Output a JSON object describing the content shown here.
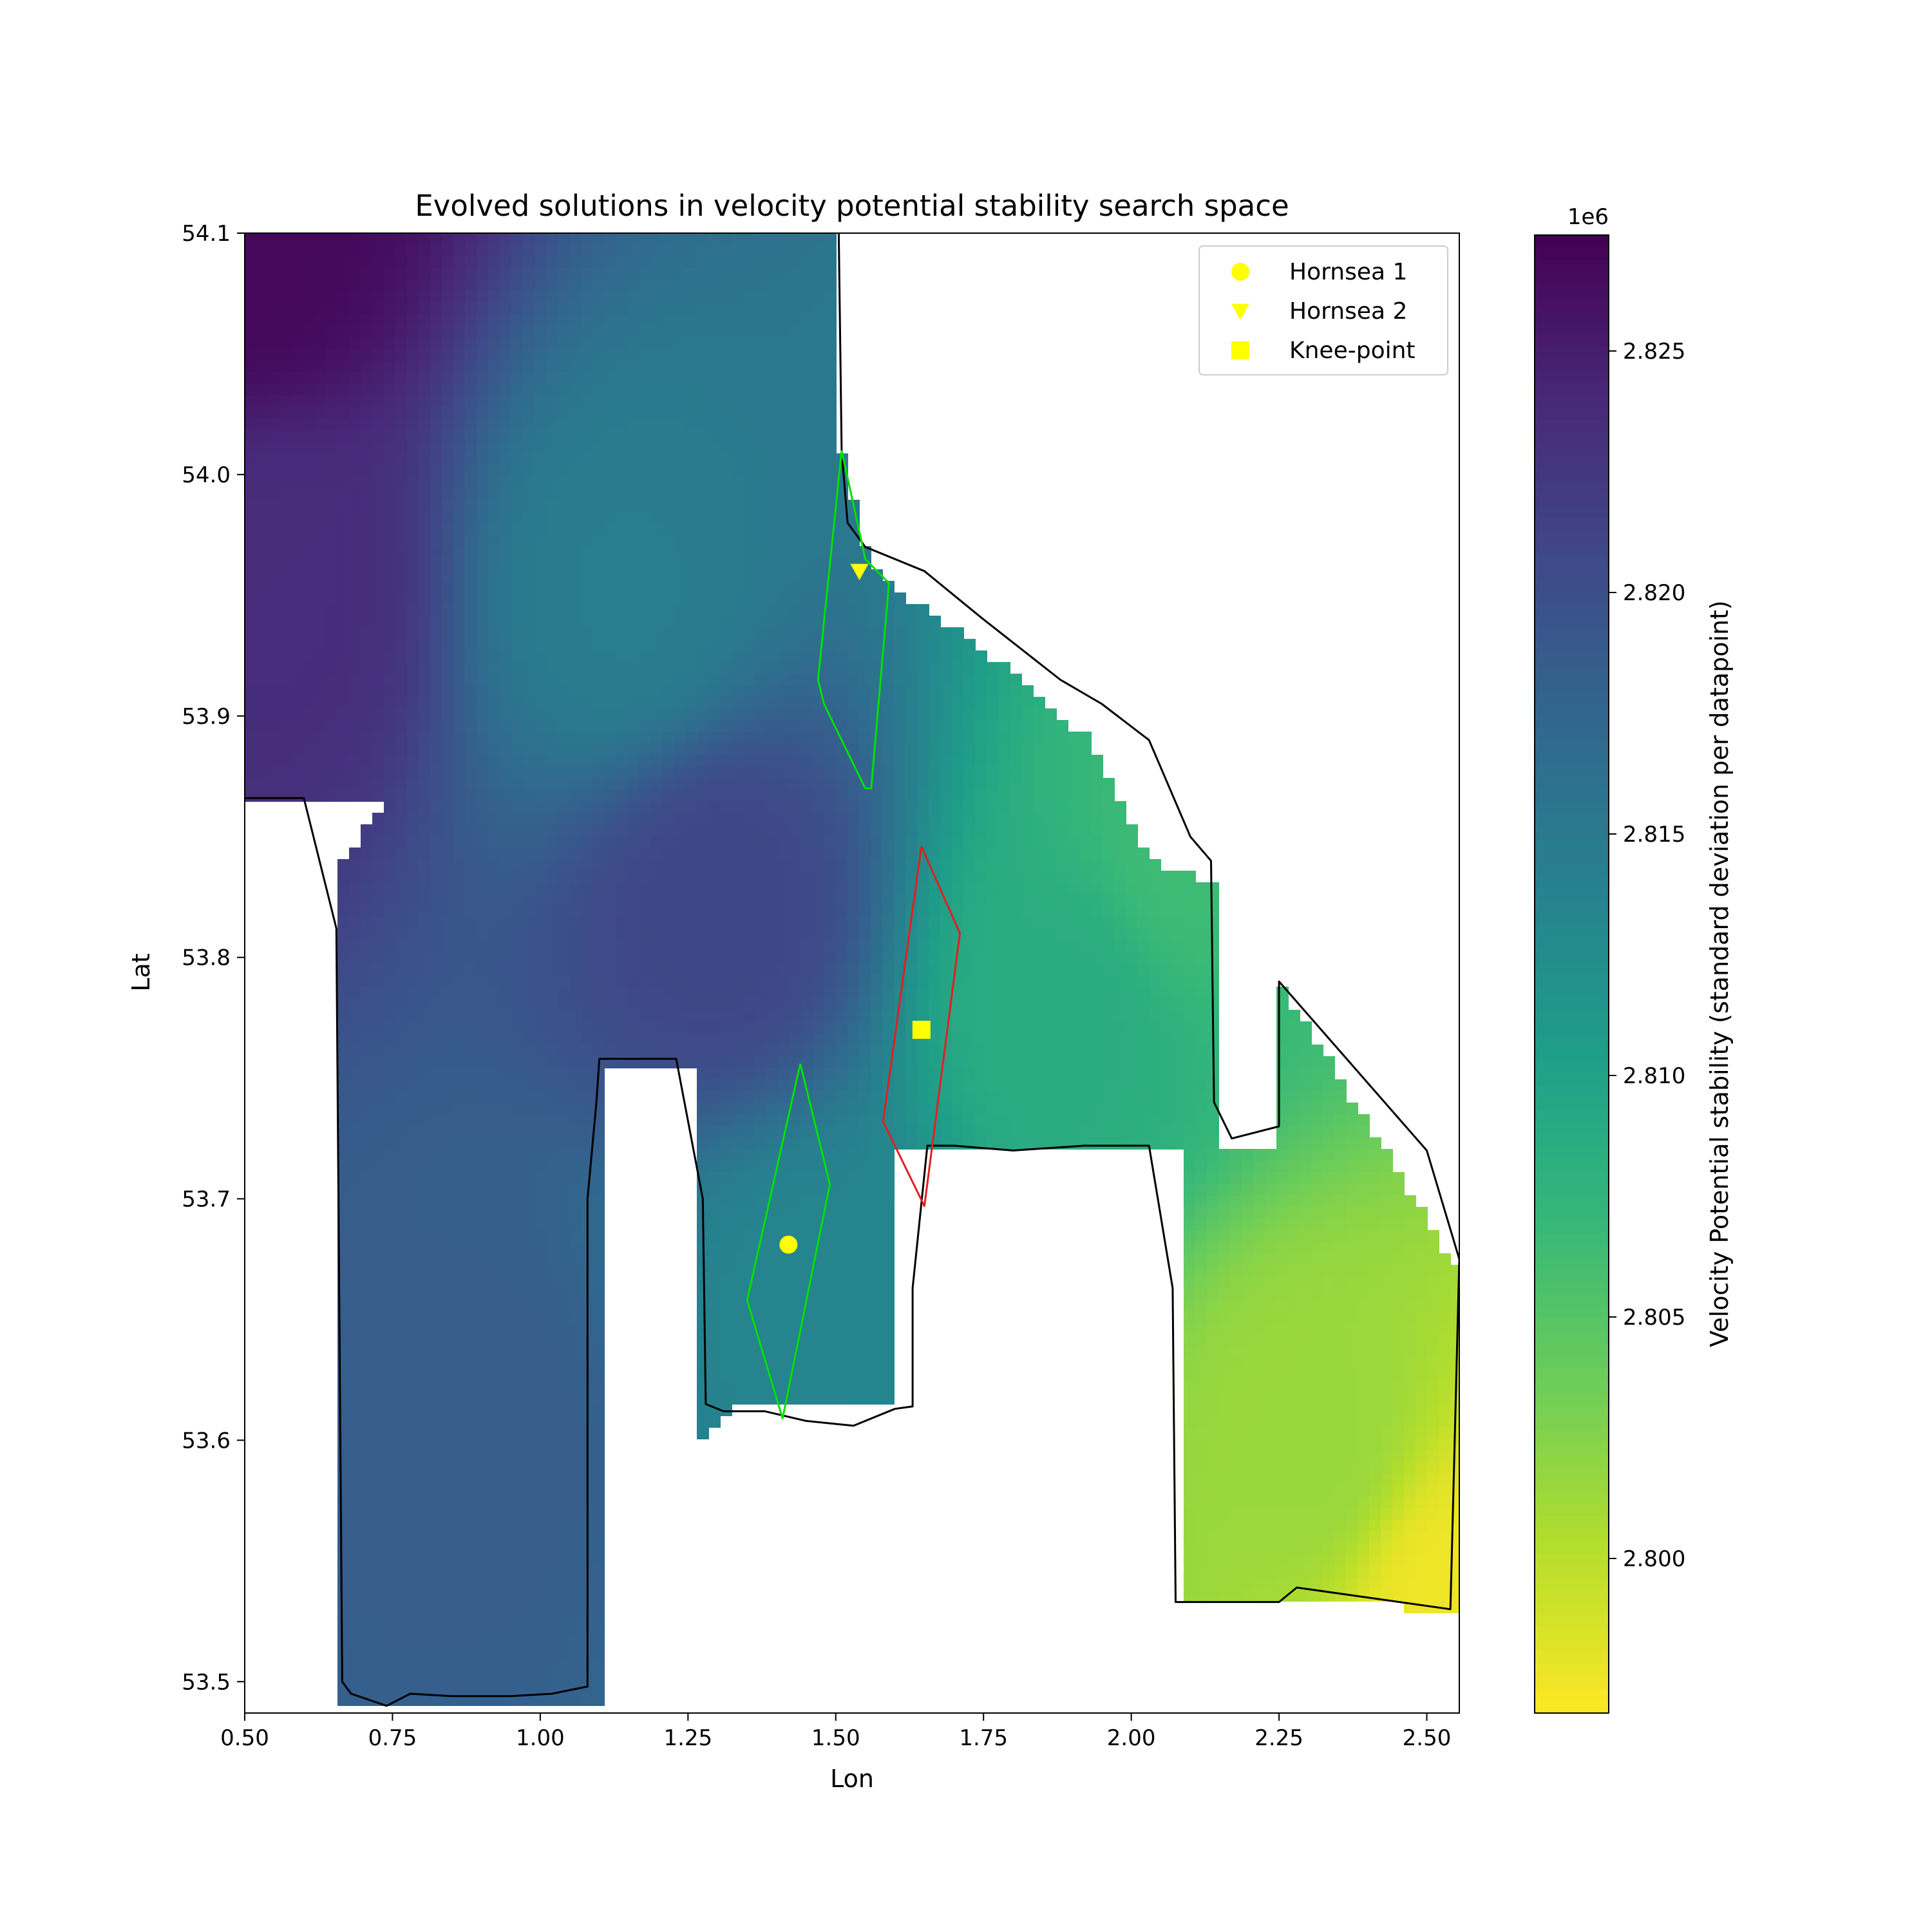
{
  "chart_data": {
    "type": "scatter",
    "title": "Evolved solutions in velocity potential stability search space",
    "xlabel": "Lon",
    "ylabel": "Lat",
    "xlim": [
      0.5,
      2.555
    ],
    "ylim": [
      53.487,
      54.1
    ],
    "x_ticks": [
      0.5,
      0.75,
      1.0,
      1.25,
      1.5,
      1.75,
      2.0,
      2.25,
      2.5
    ],
    "x_tick_labels": [
      "0.50",
      "0.75",
      "1.00",
      "1.25",
      "1.50",
      "1.75",
      "2.00",
      "2.25",
      "2.50"
    ],
    "y_ticks": [
      53.5,
      53.6,
      53.7,
      53.8,
      53.9,
      54.0,
      54.1
    ],
    "y_tick_labels": [
      "53.5",
      "53.6",
      "53.7",
      "53.8",
      "53.9",
      "54.0",
      "54.1"
    ],
    "grid": false,
    "legend_position": "top-right",
    "colormap": "viridis_r",
    "colorbar": {
      "label": "Velocity Potential stability (standard deviation per datapoint)",
      "multiplier": "1e6",
      "range": [
        2.7968,
        2.8274
      ],
      "ticks": [
        2.8,
        2.805,
        2.81,
        2.815,
        2.82,
        2.825
      ],
      "tick_labels": [
        "2.800",
        "2.805",
        "2.810",
        "2.815",
        "2.820",
        "2.825"
      ]
    },
    "search_space_regions": [
      {
        "polygon": [
          [
            0.5,
            54.1
          ],
          [
            1.51,
            54.1
          ],
          [
            1.51,
            54.01
          ],
          [
            1.56,
            53.96
          ],
          [
            1.79,
            53.92
          ],
          [
            1.93,
            53.89
          ],
          [
            2.03,
            53.84
          ],
          [
            2.15,
            53.83
          ],
          [
            2.15,
            53.72
          ],
          [
            2.25,
            53.72
          ],
          [
            2.25,
            53.79
          ],
          [
            2.555,
            53.67
          ],
          [
            2.555,
            53.53
          ],
          [
            2.08,
            53.535
          ],
          [
            2.08,
            53.72
          ],
          [
            1.6,
            53.72
          ],
          [
            1.6,
            53.615
          ],
          [
            1.34,
            53.615
          ],
          [
            1.27,
            53.6
          ],
          [
            1.27,
            53.755
          ],
          [
            1.1,
            53.755
          ],
          [
            1.1,
            53.49
          ],
          [
            0.66,
            53.49
          ],
          [
            0.66,
            53.84
          ],
          [
            0.73,
            53.86
          ],
          [
            0.73,
            53.865
          ],
          [
            0.5,
            53.865
          ]
        ]
      }
    ],
    "color_stops": [
      {
        "lon": 0.5,
        "lat": 54.1,
        "value": 2.8268
      },
      {
        "lon": 0.55,
        "lat": 53.95,
        "value": 2.8235
      },
      {
        "lon": 1.15,
        "lat": 53.95,
        "value": 2.8145
      },
      {
        "lon": 1.3,
        "lat": 53.82,
        "value": 2.821
      },
      {
        "lon": 0.9,
        "lat": 53.6,
        "value": 2.8185
      },
      {
        "lon": 1.45,
        "lat": 53.65,
        "value": 2.8135
      },
      {
        "lon": 1.9,
        "lat": 53.78,
        "value": 2.8085
      },
      {
        "lon": 2.1,
        "lat": 53.84,
        "value": 2.8065
      },
      {
        "lon": 2.3,
        "lat": 53.6,
        "value": 2.8015
      },
      {
        "lon": 2.55,
        "lat": 53.53,
        "value": 2.7975
      }
    ],
    "boundary_black": [
      [
        0.5,
        53.866
      ],
      [
        0.6,
        53.866
      ],
      [
        0.655,
        53.812
      ],
      [
        0.665,
        53.5
      ],
      [
        0.68,
        53.495
      ],
      [
        0.74,
        53.49
      ],
      [
        0.78,
        53.495
      ],
      [
        0.85,
        53.494
      ],
      [
        0.95,
        53.494
      ],
      [
        1.02,
        53.495
      ],
      [
        1.08,
        53.498
      ],
      [
        1.08,
        53.7
      ],
      [
        1.095,
        53.74
      ],
      [
        1.1,
        53.758
      ],
      [
        1.23,
        53.758
      ],
      [
        1.275,
        53.7
      ],
      [
        1.28,
        53.615
      ],
      [
        1.31,
        53.612
      ],
      [
        1.38,
        53.612
      ],
      [
        1.45,
        53.608
      ],
      [
        1.53,
        53.606
      ],
      [
        1.6,
        53.613
      ],
      [
        1.63,
        53.614
      ],
      [
        1.63,
        53.663
      ],
      [
        1.655,
        53.722
      ],
      [
        1.7,
        53.722
      ],
      [
        1.8,
        53.72
      ],
      [
        1.92,
        53.722
      ],
      [
        2.03,
        53.722
      ],
      [
        2.07,
        53.663
      ],
      [
        2.075,
        53.533
      ],
      [
        2.15,
        53.533
      ],
      [
        2.25,
        53.533
      ],
      [
        2.28,
        53.539
      ],
      [
        2.54,
        53.53
      ],
      [
        2.555,
        53.675
      ],
      [
        2.5,
        53.72
      ],
      [
        2.25,
        53.79
      ],
      [
        2.25,
        53.73
      ],
      [
        2.17,
        53.725
      ],
      [
        2.14,
        53.74
      ],
      [
        2.135,
        53.84
      ],
      [
        2.1,
        53.85
      ],
      [
        2.03,
        53.89
      ],
      [
        1.95,
        53.905
      ],
      [
        1.88,
        53.915
      ],
      [
        1.75,
        53.94
      ],
      [
        1.65,
        53.96
      ],
      [
        1.55,
        53.97
      ],
      [
        1.52,
        53.98
      ],
      [
        1.51,
        54.01
      ],
      [
        1.505,
        54.1
      ]
    ],
    "polygons": [
      {
        "color": "#00e000",
        "points": [
          [
            1.51,
            54.01
          ],
          [
            1.55,
            53.965
          ],
          [
            1.59,
            53.955
          ],
          [
            1.56,
            53.87
          ],
          [
            1.55,
            53.87
          ],
          [
            1.48,
            53.905
          ],
          [
            1.47,
            53.915
          ],
          [
            1.51,
            54.01
          ]
        ]
      },
      {
        "color": "#00e000",
        "points": [
          [
            1.44,
            53.756
          ],
          [
            1.49,
            53.706
          ],
          [
            1.41,
            53.609
          ],
          [
            1.35,
            53.658
          ],
          [
            1.44,
            53.756
          ]
        ]
      },
      {
        "color": "#e02020",
        "points": [
          [
            1.645,
            53.846
          ],
          [
            1.71,
            53.81
          ],
          [
            1.65,
            53.697
          ],
          [
            1.58,
            53.732
          ],
          [
            1.645,
            53.846
          ]
        ]
      }
    ],
    "legend": [
      {
        "label": "Hornsea 1",
        "marker": "circle",
        "color": "#ffff00"
      },
      {
        "label": "Hornsea 2",
        "marker": "triangle-down",
        "color": "#ffff00"
      },
      {
        "label": "Knee-point",
        "marker": "square",
        "color": "#ffff00"
      }
    ],
    "markers": [
      {
        "name": "Hornsea 1",
        "lon": 1.42,
        "lat": 53.681,
        "marker": "circle"
      },
      {
        "name": "Hornsea 2",
        "lon": 1.54,
        "lat": 53.96,
        "marker": "triangle-down"
      },
      {
        "name": "Knee-point",
        "lon": 1.645,
        "lat": 53.77,
        "marker": "square"
      }
    ]
  }
}
